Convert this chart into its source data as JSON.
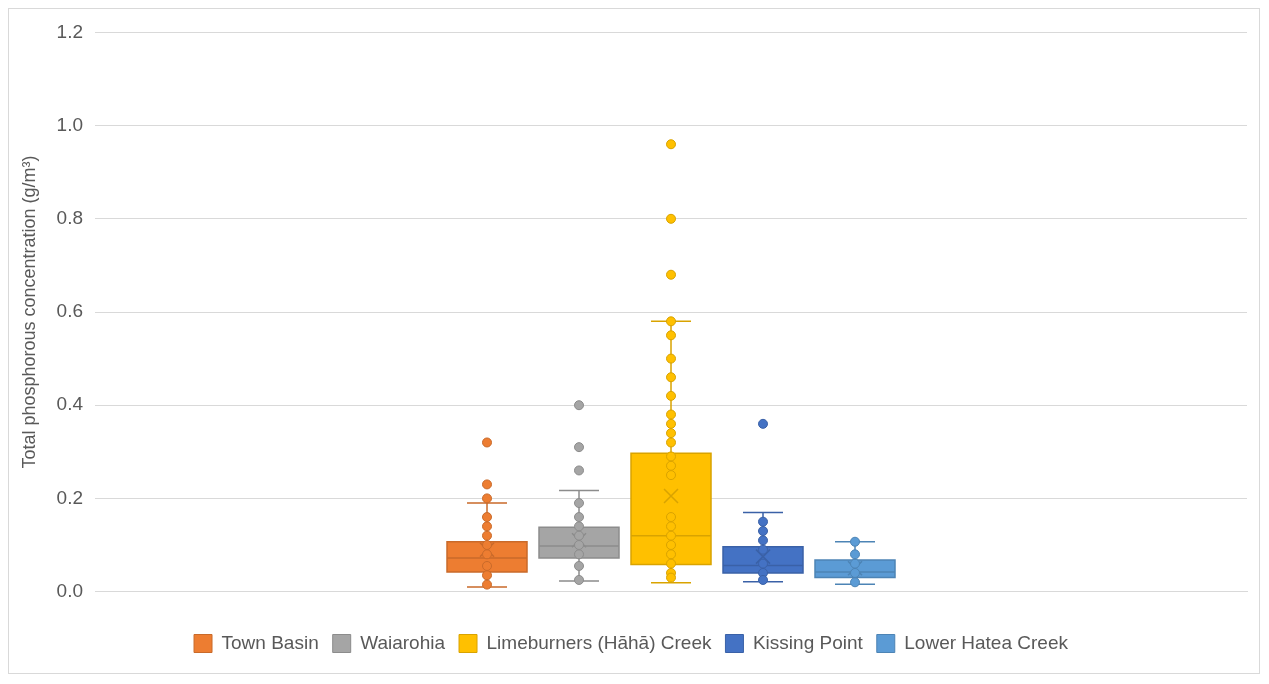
{
  "chart_data": {
    "type": "box",
    "ylabel": "Total phosphorous concentration (g/m³)",
    "categories": [
      null
    ],
    "ylim": [
      0,
      1.2
    ],
    "yticks": [
      {
        "value": 0,
        "label": "0.0"
      },
      {
        "value": 0.2,
        "label": "0.2"
      },
      {
        "value": 0.4,
        "label": "0.4"
      },
      {
        "value": 0.6,
        "label": "0.6"
      },
      {
        "value": 0.8,
        "label": "0.8"
      },
      {
        "value": 1.0,
        "label": "1.0"
      },
      {
        "value": 1.2,
        "label": "1.2"
      }
    ],
    "grid": "y",
    "legend": "bottom",
    "marker": "circle",
    "series": [
      {
        "name": "Town Basin",
        "color": "#ed7d31",
        "boxes": [
          {
            "low": 0.01,
            "q1": 0.042,
            "median": 0.072,
            "q3": 0.107,
            "high": 0.19,
            "mean": 0.09,
            "outliers": [
              0.32,
              0.23,
              0.2,
              0.16,
              0.14,
              0.12,
              0.1,
              0.08,
              0.055,
              0.035,
              0.015
            ]
          }
        ]
      },
      {
        "name": "Waiarohia",
        "color": "#a5a5a5",
        "boxes": [
          {
            "low": 0.023,
            "q1": 0.072,
            "median": 0.098,
            "q3": 0.138,
            "high": 0.217,
            "mean": 0.11,
            "outliers": [
              0.4,
              0.31,
              0.26,
              0.19,
              0.16,
              0.14,
              0.12,
              0.1,
              0.08,
              0.055,
              0.025
            ]
          }
        ]
      },
      {
        "name": "Limeburners (Hāhā) Creek",
        "color": "#ffc000",
        "boxes": [
          {
            "low": 0.019,
            "q1": 0.058,
            "median": 0.12,
            "q3": 0.297,
            "high": 0.58,
            "mean": 0.205,
            "outliers": [
              0.96,
              0.8,
              0.68,
              0.58,
              0.55,
              0.5,
              0.46,
              0.42,
              0.38,
              0.36,
              0.34,
              0.32,
              0.29,
              0.27,
              0.25,
              0.16,
              0.14,
              0.12,
              0.1,
              0.08,
              0.06,
              0.04,
              0.03
            ]
          }
        ]
      },
      {
        "name": "Kissing Point",
        "color": "#4472c4",
        "boxes": [
          {
            "low": 0.021,
            "q1": 0.04,
            "median": 0.056,
            "q3": 0.096,
            "high": 0.17,
            "mean": 0.075,
            "outliers": [
              0.36,
              0.15,
              0.13,
              0.11,
              0.09,
              0.06,
              0.04,
              0.025
            ]
          }
        ]
      },
      {
        "name": "Lower Hatea Creek",
        "color": "#5b9bd5",
        "boxes": [
          {
            "low": 0.016,
            "q1": 0.03,
            "median": 0.042,
            "q3": 0.068,
            "high": 0.107,
            "mean": 0.05,
            "outliers": [
              0.107,
              0.08,
              0.06,
              0.04,
              0.02
            ]
          }
        ]
      }
    ]
  }
}
